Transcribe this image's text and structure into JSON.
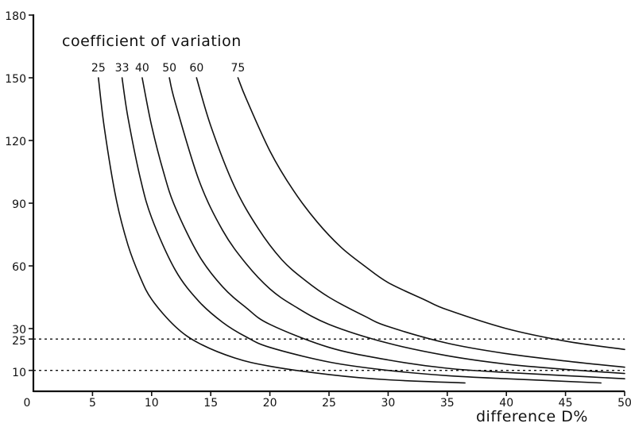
{
  "chart_data": {
    "type": "line",
    "legend_title": "coefficient of variation",
    "xlabel": "difference  D%",
    "ylabel": "",
    "xlim": [
      0,
      50
    ],
    "ylim": [
      0,
      180
    ],
    "x_ticks": [
      0,
      5,
      10,
      15,
      20,
      25,
      30,
      35,
      40,
      45,
      50
    ],
    "y_ticks": [
      10,
      25,
      30,
      60,
      90,
      120,
      150,
      180
    ],
    "reference_lines_y": [
      25,
      10
    ],
    "series": [
      {
        "name": "25",
        "x": [
          5.5,
          6,
          7,
          8,
          9,
          10,
          12,
          14,
          17,
          20,
          25,
          30,
          36.5
        ],
        "y": [
          150,
          126,
          92,
          70,
          55,
          44,
          31,
          23,
          16,
          12,
          8,
          5.5,
          4
        ]
      },
      {
        "name": "33",
        "x": [
          7.5,
          8,
          9,
          10,
          12,
          14,
          16,
          18,
          20,
          25,
          30,
          35,
          40,
          48
        ],
        "y": [
          150,
          131,
          103,
          83,
          58,
          43,
          33,
          26,
          21,
          14,
          10,
          7.5,
          6,
          4
        ]
      },
      {
        "name": "40",
        "x": [
          9.2,
          10,
          11,
          12,
          14,
          16,
          18,
          20,
          25,
          30,
          35,
          40,
          45,
          50
        ],
        "y": [
          150,
          127,
          105,
          88,
          65,
          50,
          40,
          32,
          21,
          15,
          11,
          9,
          7.5,
          6
        ]
      },
      {
        "name": "50",
        "x": [
          11.5,
          12,
          14,
          16,
          18,
          20,
          22,
          25,
          30,
          35,
          40,
          45,
          50
        ],
        "y": [
          150,
          138,
          101,
          77,
          61,
          49,
          41,
          32,
          23,
          17,
          13,
          10.5,
          8.5
        ]
      },
      {
        "name": "60",
        "x": [
          13.8,
          15,
          17,
          19,
          21,
          23,
          25,
          28,
          30,
          35,
          40,
          45,
          50
        ],
        "y": [
          150,
          127,
          98,
          78,
          63,
          53,
          45,
          36,
          31,
          23,
          18,
          14.5,
          11.5
        ]
      },
      {
        "name": "75",
        "x": [
          17.3,
          18,
          20,
          22,
          24,
          26,
          28,
          30,
          33,
          35,
          40,
          45,
          50
        ],
        "y": [
          150,
          140,
          115,
          96,
          81,
          69,
          60,
          52,
          44,
          39,
          30,
          24,
          20
        ]
      }
    ],
    "series_label_order": [
      "25",
      "33",
      "40",
      "50",
      "60",
      "75"
    ],
    "grid": false
  }
}
